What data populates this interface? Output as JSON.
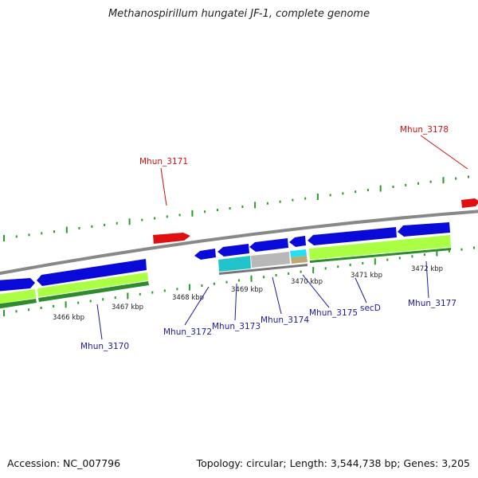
{
  "title": "Methanospirillum hungatei JF-1, complete genome",
  "colors": {
    "backbone": "#888888",
    "forward_gene": "#0a0ad8",
    "reverse_gene": "#e01010",
    "cds_light": "#aaff44",
    "cds_dark": "#2e8b2e",
    "cds_cyan": "#22c4cc",
    "cds_gray": "#b8b8b8",
    "cds_tan": "#bba877",
    "tick": "#2a9a2a",
    "label_blue": "#1a1aa0",
    "label_red": "#cc1111"
  },
  "scale_labels": [
    "3466 kbp",
    "3467 kbp",
    "3468 kbp",
    "3469 kbp",
    "3470 kbp",
    "3471 kbp",
    "3472 kbp"
  ],
  "genes": [
    {
      "id": "Mhun_3170",
      "strand": "forward"
    },
    {
      "id": "Mhun_3171",
      "strand": "reverse"
    },
    {
      "id": "Mhun_3172",
      "strand": "forward"
    },
    {
      "id": "Mhun_3173",
      "strand": "forward"
    },
    {
      "id": "Mhun_3174",
      "strand": "forward"
    },
    {
      "id": "Mhun_3175",
      "strand": "forward"
    },
    {
      "id": "secD",
      "strand": "forward"
    },
    {
      "id": "Mhun_3177",
      "strand": "forward"
    },
    {
      "id": "Mhun_3178",
      "strand": "reverse"
    }
  ],
  "footer": {
    "accession": "Accession: NC_007796",
    "summary": "Topology: circular; Length: 3,544,738 bp; Genes: 3,205"
  }
}
